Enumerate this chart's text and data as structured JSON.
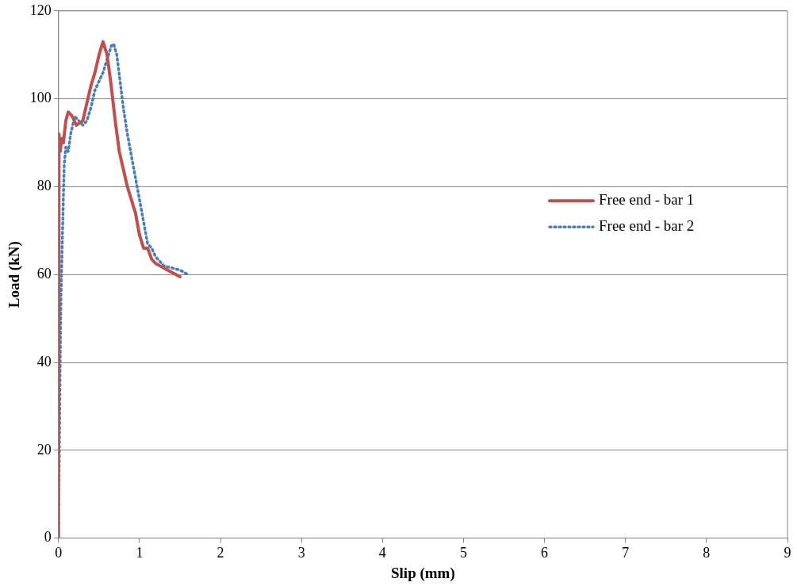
{
  "chart_data": {
    "type": "line",
    "xlabel": "Slip (mm)",
    "ylabel": "Load (kN)",
    "xlim": [
      0,
      9
    ],
    "xticks": [
      0,
      1,
      2,
      3,
      4,
      5,
      6,
      7,
      8,
      9
    ],
    "ylim": [
      0,
      120
    ],
    "yticks": [
      0,
      20,
      40,
      60,
      80,
      100,
      120
    ],
    "grid": "y",
    "legend": "right",
    "marker": "none",
    "series": [
      {
        "name": "Free end - bar 1",
        "color": "#c0504d",
        "line_style": "solid",
        "x": [
          0,
          0.003,
          0.005,
          0.02,
          0.04,
          0.06,
          0.09,
          0.12,
          0.17,
          0.22,
          0.3,
          0.35,
          0.4,
          0.45,
          0.5,
          0.55,
          0.6,
          0.65,
          0.7,
          0.75,
          0.8,
          0.85,
          0.9,
          0.95,
          1.0,
          1.05,
          1.1,
          1.15,
          1.2,
          1.3,
          1.4,
          1.5
        ],
        "values": [
          0,
          60,
          92,
          88,
          91,
          90,
          95,
          97,
          96,
          94,
          95,
          99,
          103,
          106,
          110,
          113,
          110,
          103,
          95,
          88,
          84,
          80,
          77,
          74,
          69,
          66,
          66,
          63.5,
          62.5,
          61.5,
          60.5,
          59.5
        ]
      },
      {
        "name": "Free end - bar 2",
        "color": "#4a7ebb",
        "line_style": "dotted",
        "x": [
          0,
          0.01,
          0.02,
          0.03,
          0.05,
          0.07,
          0.09,
          0.12,
          0.15,
          0.2,
          0.25,
          0.3,
          0.35,
          0.4,
          0.45,
          0.5,
          0.55,
          0.6,
          0.65,
          0.68,
          0.72,
          0.76,
          0.8,
          0.85,
          0.9,
          0.95,
          1.0,
          1.05,
          1.1,
          1.15,
          1.2,
          1.3,
          1.4,
          1.5,
          1.6
        ],
        "values": [
          0,
          20,
          40,
          55,
          70,
          85,
          89,
          88,
          92,
          96,
          95,
          94,
          95,
          98,
          102,
          104,
          106,
          109,
          112,
          112.5,
          110,
          104,
          98,
          92,
          87,
          82,
          77,
          72,
          67,
          66,
          64,
          62,
          61.5,
          61,
          60
        ]
      }
    ]
  }
}
